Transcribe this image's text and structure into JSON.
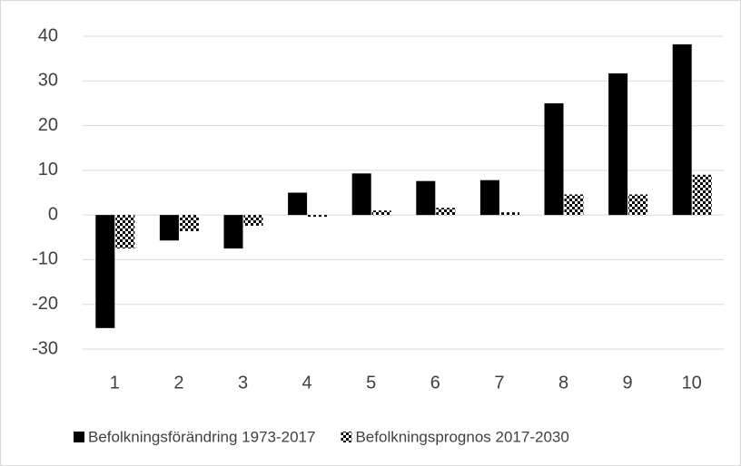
{
  "chart_data": {
    "type": "bar",
    "categories": [
      "1",
      "2",
      "3",
      "4",
      "5",
      "6",
      "7",
      "8",
      "9",
      "10"
    ],
    "series": [
      {
        "name": "Befolkningsförändring 1973-2017",
        "color": "#000000",
        "values": [
          -25.3,
          -5.7,
          -7.5,
          5,
          9.3,
          7.6,
          7.8,
          25,
          31.7,
          38.2
        ]
      },
      {
        "name": "Befolkningsprognos 2017-2030",
        "color": "#000000",
        "pattern": "checkerboard",
        "values": [
          -7.5,
          -3.6,
          -2.4,
          -0.4,
          1,
          1.6,
          0.6,
          4.6,
          4.6,
          9
        ]
      }
    ],
    "ylim": [
      -30,
      40
    ],
    "yticks": [
      -30,
      -20,
      -10,
      0,
      10,
      20,
      30,
      40
    ],
    "grid": true,
    "legend": "bottom"
  }
}
